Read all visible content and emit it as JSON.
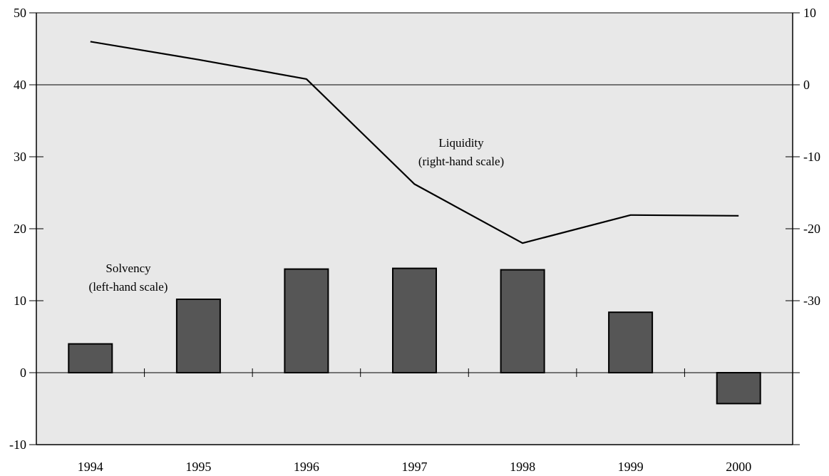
{
  "chart_data": {
    "type": "bar",
    "categories": [
      "1994",
      "1995",
      "1996",
      "1997",
      "1998",
      "1999",
      "2000"
    ],
    "series": [
      {
        "type": "bar",
        "axis": "left",
        "values": [
          4.0,
          10.2,
          14.4,
          14.5,
          14.3,
          8.4,
          -4.3
        ],
        "color": "#565656"
      },
      {
        "type": "line",
        "axis": "right",
        "values": [
          6.0,
          3.5,
          0.8,
          -13.8,
          -22.0,
          -18.1,
          -18.2
        ],
        "color": "#000000"
      }
    ],
    "left_axis": {
      "ylim": [
        -10,
        50
      ],
      "ticks": [
        "50",
        "40",
        "30",
        "20",
        "10",
        "0",
        "-10"
      ]
    },
    "right_axis": {
      "ylim": [
        -40,
        10
      ],
      "ticks": [
        "10",
        "0",
        "-10",
        "-20",
        "-30"
      ]
    },
    "annotations": {
      "liquidity_line1": "Liquidity",
      "liquidity_line2": "(right-hand scale)",
      "solvency_line1": "Solvency",
      "solvency_line2": "(left-hand scale)"
    },
    "plot_background": "#e8e8e8",
    "grid": false,
    "legend": "none"
  }
}
